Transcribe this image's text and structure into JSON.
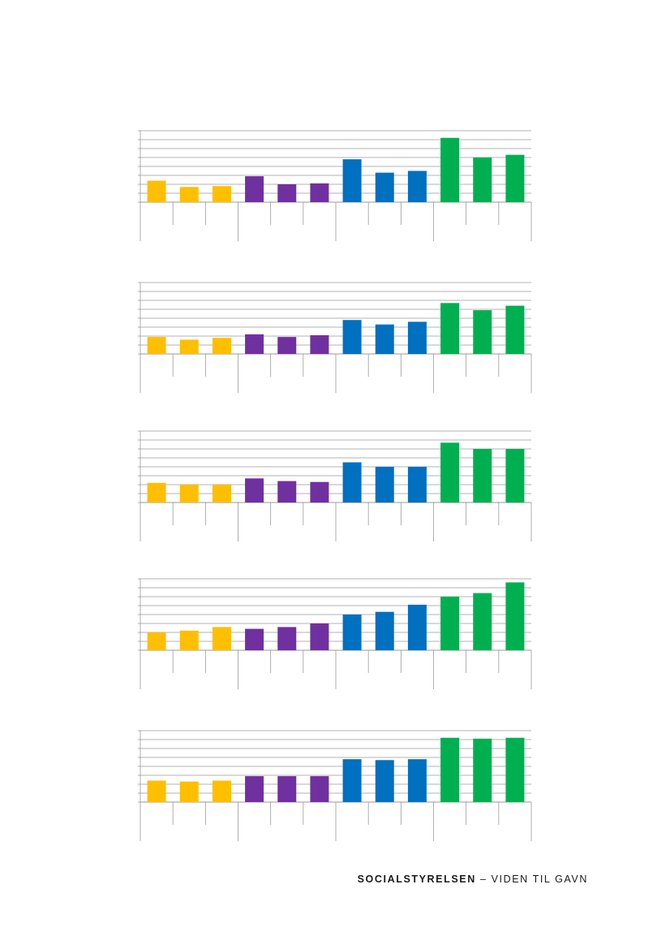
{
  "colors": {
    "group1": "#fdbf00",
    "group2": "#7030a0",
    "group3": "#0070c0",
    "group4": "#00b050",
    "gridline": "#9a9a9a",
    "axis": "#9a9a9a"
  },
  "chart_data": [
    {
      "type": "bar",
      "ylim": [
        0,
        8
      ],
      "grid": true,
      "values": [
        2.4,
        1.7,
        1.8,
        2.9,
        2.0,
        2.1,
        4.8,
        3.3,
        3.5,
        7.2,
        5.0,
        5.3
      ],
      "series_colors": [
        "group1",
        "group1",
        "group1",
        "group2",
        "group2",
        "group2",
        "group3",
        "group3",
        "group3",
        "group4",
        "group4",
        "group4"
      ]
    },
    {
      "type": "bar",
      "ylim": [
        0,
        8
      ],
      "grid": true,
      "values": [
        1.9,
        1.6,
        1.8,
        2.2,
        1.9,
        2.1,
        3.8,
        3.3,
        3.6,
        5.7,
        4.9,
        5.4
      ],
      "series_colors": [
        "group1",
        "group1",
        "group1",
        "group2",
        "group2",
        "group2",
        "group3",
        "group3",
        "group3",
        "group4",
        "group4",
        "group4"
      ]
    },
    {
      "type": "bar",
      "ylim": [
        0,
        8
      ],
      "grid": true,
      "values": [
        2.2,
        2.0,
        2.0,
        2.7,
        2.4,
        2.3,
        4.5,
        4.0,
        4.0,
        6.7,
        6.0,
        6.0
      ],
      "series_colors": [
        "group1",
        "group1",
        "group1",
        "group2",
        "group2",
        "group2",
        "group3",
        "group3",
        "group3",
        "group4",
        "group4",
        "group4"
      ]
    },
    {
      "type": "bar",
      "ylim": [
        0,
        8
      ],
      "grid": true,
      "values": [
        2.0,
        2.2,
        2.6,
        2.4,
        2.6,
        3.0,
        4.0,
        4.3,
        5.1,
        6.0,
        6.4,
        7.6
      ],
      "series_colors": [
        "group1",
        "group1",
        "group1",
        "group2",
        "group2",
        "group2",
        "group3",
        "group3",
        "group3",
        "group4",
        "group4",
        "group4"
      ]
    },
    {
      "type": "bar",
      "ylim": [
        0,
        8
      ],
      "grid": true,
      "values": [
        2.4,
        2.3,
        2.4,
        2.9,
        2.9,
        2.9,
        4.8,
        4.7,
        4.8,
        7.2,
        7.1,
        7.2
      ],
      "series_colors": [
        "group1",
        "group1",
        "group1",
        "group2",
        "group2",
        "group2",
        "group3",
        "group3",
        "group3",
        "group4",
        "group4",
        "group4"
      ]
    }
  ],
  "footer": {
    "brand": "SOCIALSTYRELSEN",
    "tagline": " – VIDEN TIL GAVN"
  }
}
